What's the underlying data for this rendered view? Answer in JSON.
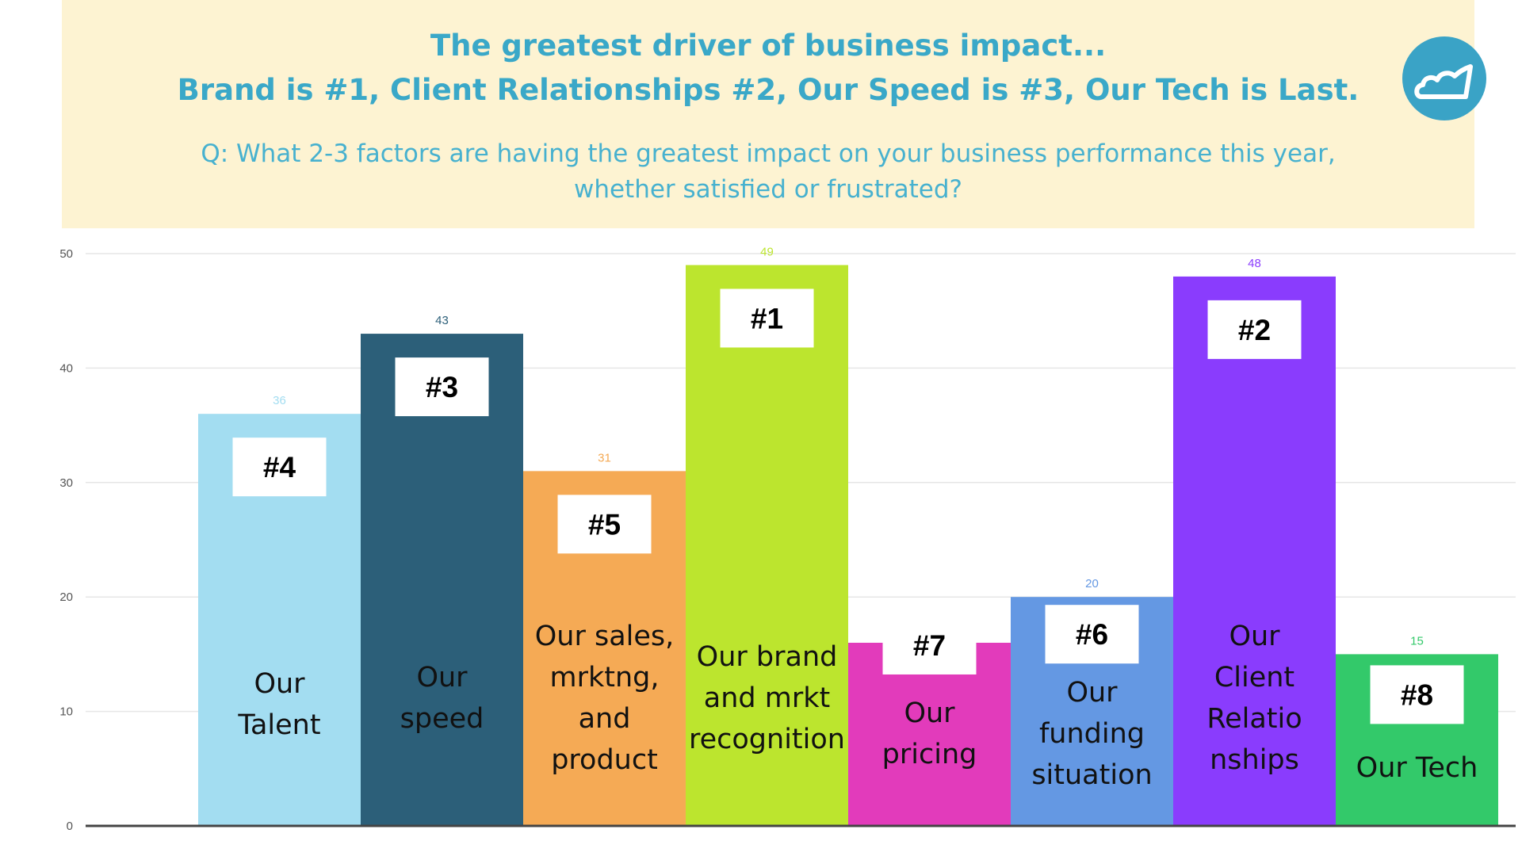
{
  "header": {
    "title_line1": "The greatest driver of business impact...",
    "title_line2": "Brand is #1, Client Relationships #2, Our Speed is #3, Our Tech is Last.",
    "question": "Q: What 2-3 factors are having the greatest impact on your business performance this year, whether satisfied or frustrated?"
  },
  "logo": {
    "icon": "cloud-icon",
    "color": "#3aa3c6"
  },
  "chart_data": {
    "type": "bar",
    "title": "",
    "xlabel": "",
    "ylabel": "",
    "ylim": [
      0,
      50
    ],
    "yticks": [
      0,
      10,
      20,
      30,
      40,
      50
    ],
    "grid": true,
    "categories": [
      [
        "Our",
        "Talent"
      ],
      [
        "Our",
        "speed"
      ],
      [
        "Our sales,",
        "mrktng,",
        "and",
        "product"
      ],
      [
        "Our brand",
        "and mrkt",
        "recognition"
      ],
      [
        "Our",
        "pricing"
      ],
      [
        "Our",
        "funding",
        "situation"
      ],
      [
        "Our",
        "Client",
        "Relatio",
        "nships"
      ],
      [
        "Our Tech"
      ]
    ],
    "values": [
      36,
      43,
      31,
      49,
      16,
      20,
      48,
      15
    ],
    "data_labels": [
      "36",
      "43",
      "31",
      "49",
      "",
      "20",
      "48",
      "15"
    ],
    "ranks": [
      "#4",
      "#3",
      "#5",
      "#1",
      "#7",
      "#6",
      "#2",
      "#8"
    ],
    "colors": [
      "#a3ddf1",
      "#2c5f79",
      "#f5aa55",
      "#bce52e",
      "#e23bbb",
      "#6498e3",
      "#8a3cfd",
      "#33c96a"
    ],
    "label_colors": [
      "#a3ddf1",
      "#2c5f79",
      "#f5aa55",
      "#bce52e",
      "#e23bbb",
      "#6498e3",
      "#8a3cfd",
      "#33c96a"
    ]
  }
}
